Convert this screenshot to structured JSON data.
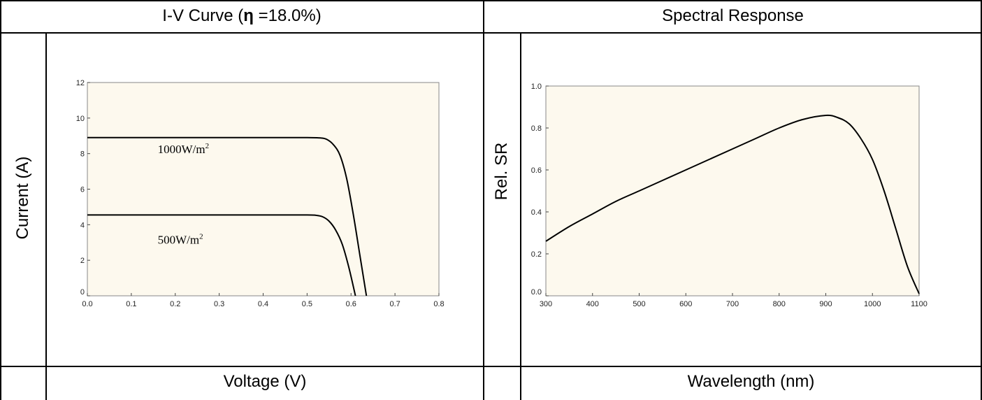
{
  "headers": {
    "iv_prefix": "I-V Curve (",
    "iv_eta": "η",
    "iv_suffix": " =18.0%)",
    "spectral": "Spectral Response"
  },
  "axis_titles": {
    "iv_y": "Current (A)",
    "iv_x": "Voltage (V)",
    "sr_y": "Rel. SR",
    "sr_x": "Wavelength (nm)"
  },
  "colors": {
    "plot_bg": "#fdf9ee",
    "curve": "#000000",
    "frame": "#888888"
  },
  "chart_data": [
    {
      "type": "line",
      "title": "I-V Curve (η =18.0%)",
      "xlabel": "Voltage (V)",
      "ylabel": "Current (A)",
      "xlim": [
        0,
        0.8
      ],
      "ylim": [
        0,
        12
      ],
      "xticks": [
        "0.0",
        "0.1",
        "0.2",
        "0.3",
        "0.4",
        "0.5",
        "0.6",
        "0.7",
        "0.8"
      ],
      "yticks": [
        "0",
        "2",
        "4",
        "6",
        "8",
        "10",
        "12"
      ],
      "grid": false,
      "series": [
        {
          "name": "1000W/m2",
          "label_main": "1000W/m",
          "label_sup": "2",
          "label_at": [
            0.16,
            8.9
          ],
          "x": [
            0.0,
            0.1,
            0.2,
            0.3,
            0.4,
            0.5,
            0.53,
            0.545,
            0.56,
            0.575,
            0.59,
            0.605,
            0.62,
            0.635
          ],
          "y": [
            8.9,
            8.9,
            8.9,
            8.9,
            8.9,
            8.9,
            8.88,
            8.8,
            8.5,
            7.9,
            6.6,
            4.6,
            2.3,
            0.0
          ]
        },
        {
          "name": "500W/m2",
          "label_main": "500W/m",
          "label_sup": "2",
          "label_at": [
            0.16,
            3.8
          ],
          "x": [
            0.0,
            0.1,
            0.2,
            0.3,
            0.4,
            0.5,
            0.52,
            0.535,
            0.55,
            0.565,
            0.58,
            0.595,
            0.61
          ],
          "y": [
            4.55,
            4.55,
            4.55,
            4.55,
            4.55,
            4.55,
            4.53,
            4.45,
            4.2,
            3.7,
            2.9,
            1.6,
            0.0
          ]
        }
      ]
    },
    {
      "type": "line",
      "title": "Spectral Response",
      "xlabel": "Wavelength (nm)",
      "ylabel": "Rel. SR",
      "xlim": [
        300,
        1100
      ],
      "ylim": [
        0,
        1.0
      ],
      "xticks": [
        "300",
        "400",
        "500",
        "600",
        "700",
        "800",
        "900",
        "1000",
        "1100"
      ],
      "yticks": [
        "0.0",
        "0.2",
        "0.4",
        "0.6",
        "0.8",
        "1.0"
      ],
      "grid": false,
      "series": [
        {
          "x": [
            300,
            350,
            400,
            450,
            500,
            550,
            600,
            650,
            700,
            750,
            800,
            850,
            900,
            925,
            950,
            975,
            1000,
            1025,
            1050,
            1075,
            1100
          ],
          "y": [
            0.26,
            0.33,
            0.39,
            0.45,
            0.5,
            0.55,
            0.6,
            0.65,
            0.7,
            0.75,
            0.8,
            0.84,
            0.86,
            0.85,
            0.82,
            0.75,
            0.65,
            0.5,
            0.32,
            0.14,
            0.01
          ]
        }
      ]
    }
  ]
}
